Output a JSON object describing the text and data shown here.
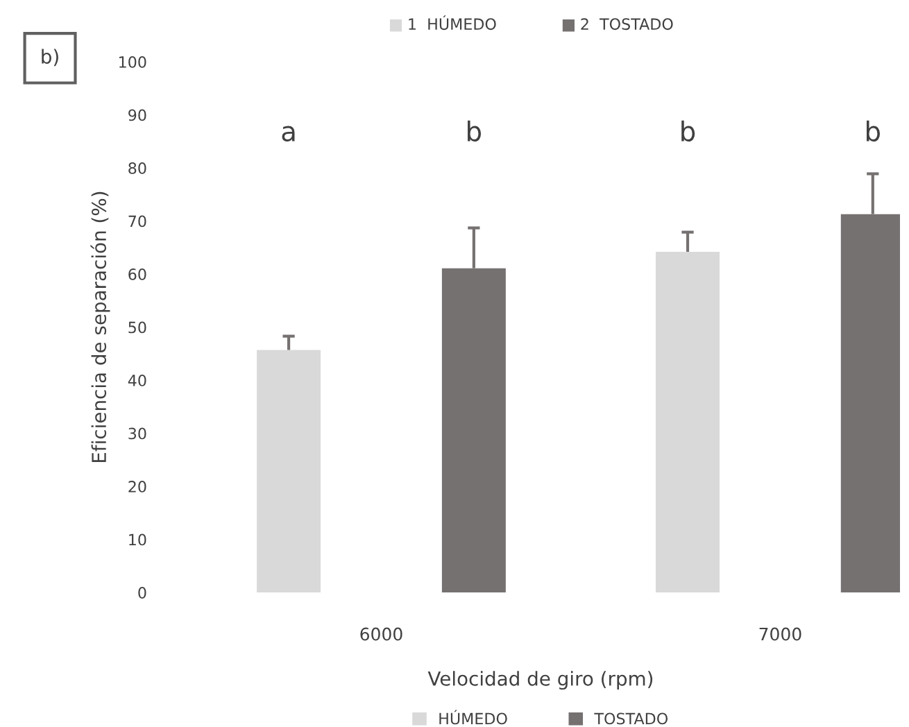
{
  "chart_data": {
    "type": "bar",
    "xlabel": "Velocidad de giro (rpm)",
    "ylabel": "Eficiencia de separación (%)",
    "categories": [
      "6000",
      "7000"
    ],
    "series": [
      {
        "name": "HÚMEDO",
        "color": "#d9d9d9",
        "values": [
          45.7,
          64.2
        ],
        "errors": [
          [
            45.7,
            48.3
          ],
          [
            64.2,
            67.9
          ]
        ]
      },
      {
        "name": "TOSTADO",
        "color": "#767171",
        "values": [
          61.1,
          71.3
        ],
        "errors": [
          [
            61.1,
            68.7
          ],
          [
            71.3,
            78.9
          ]
        ]
      }
    ],
    "ylim": [
      0,
      100
    ],
    "yticks": [
      0,
      10,
      20,
      30,
      40,
      50,
      60,
      70,
      80,
      90,
      100
    ],
    "grid": false,
    "legend": "bottom",
    "annotations": [
      "b)",
      "1  HÚMEDO",
      "2  TOSTADO",
      "a",
      "b",
      "b",
      "b"
    ]
  }
}
